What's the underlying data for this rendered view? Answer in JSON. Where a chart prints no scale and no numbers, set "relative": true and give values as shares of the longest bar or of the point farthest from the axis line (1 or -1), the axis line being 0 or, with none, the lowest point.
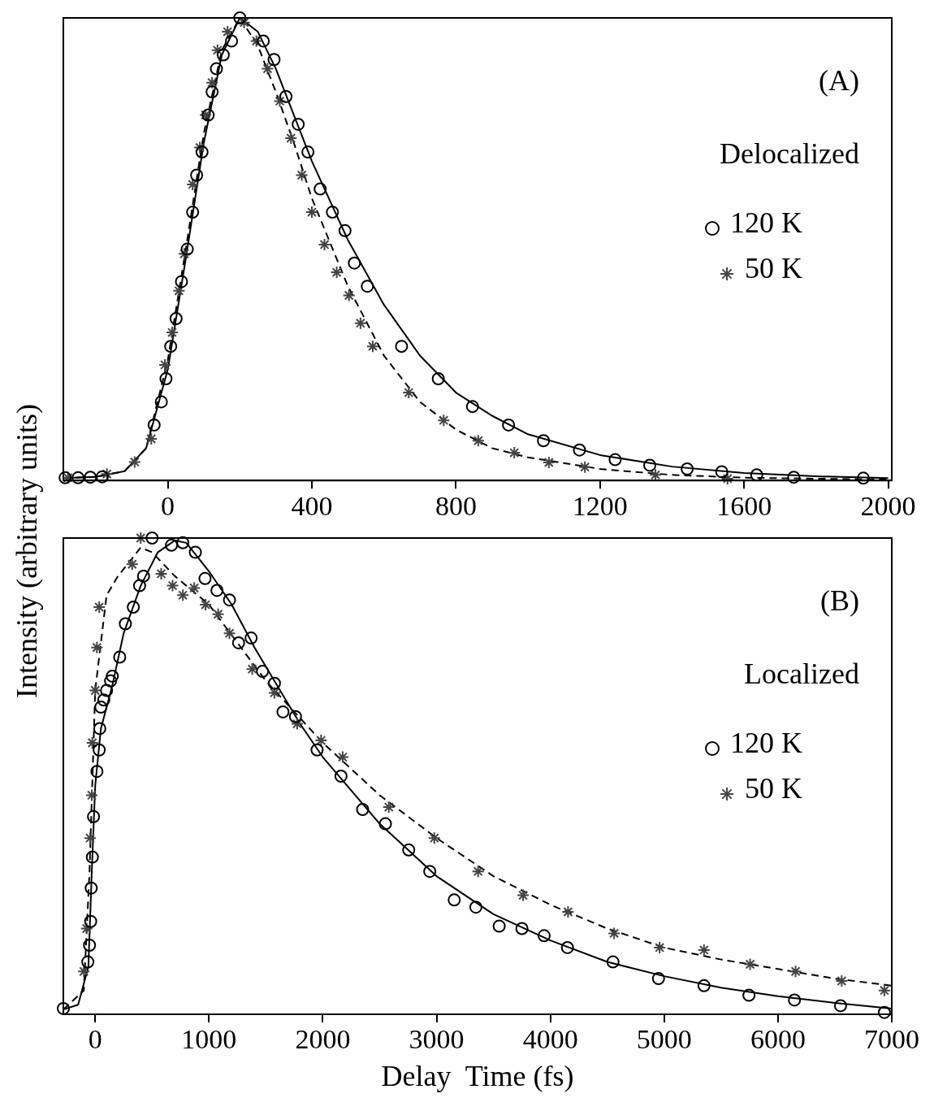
{
  "chart_data": [
    {
      "type": "scatter",
      "relative": true,
      "ylabel": "Intensity (arbitrary units)",
      "annotations": [
        "(A)"
      ],
      "legend": "right",
      "legend_title": "Delocalized",
      "grid": false,
      "xlim": [
        -290,
        2010
      ],
      "xticks": [
        0,
        400,
        800,
        1200,
        1600,
        2000
      ],
      "series": [
        {
          "name": "120 K",
          "type": "scatter",
          "marker": "circle",
          "color": "#000000",
          "x": [
            -285,
            -249,
            -215,
            -182,
            -38,
            -18,
            -5,
            8,
            23,
            38,
            54,
            69,
            80,
            95,
            112,
            123,
            135,
            154,
            177,
            200,
            265,
            295,
            328,
            362,
            389,
            423,
            457,
            492,
            518,
            554,
            649,
            751,
            846,
            946,
            1043,
            1143,
            1242,
            1338,
            1442,
            1538,
            1635,
            1738,
            1931
          ],
          "values": [
            0.006,
            0.006,
            0.007,
            0.008,
            0.12,
            0.17,
            0.22,
            0.29,
            0.35,
            0.43,
            0.5,
            0.58,
            0.66,
            0.71,
            0.79,
            0.84,
            0.89,
            0.92,
            0.95,
            1,
            0.95,
            0.91,
            0.83,
            0.77,
            0.71,
            0.63,
            0.58,
            0.54,
            0.47,
            0.42,
            0.29,
            0.22,
            0.16,
            0.12,
            0.086,
            0.066,
            0.045,
            0.033,
            0.025,
            0.019,
            0.012,
            0.007,
            0.005
          ]
        },
        {
          "name": "50 K",
          "type": "scatter",
          "marker": "cross",
          "color": "#444444",
          "x": [
            -277,
            -169,
            -92,
            -46,
            -8,
            12,
            31,
            46,
            69,
            89,
            105,
            123,
            138,
            166,
            212,
            246,
            277,
            311,
            342,
            372,
            400,
            435,
            469,
            503,
            535,
            569,
            669,
            766,
            862,
            962,
            1058,
            1158,
            1354,
            1554
          ],
          "values": [
            0.006,
            0.014,
            0.04,
            0.09,
            0.25,
            0.32,
            0.41,
            0.49,
            0.64,
            0.72,
            0.79,
            0.86,
            0.93,
            0.97,
            0.99,
            0.95,
            0.89,
            0.82,
            0.74,
            0.66,
            0.58,
            0.51,
            0.45,
            0.4,
            0.34,
            0.29,
            0.19,
            0.13,
            0.086,
            0.06,
            0.039,
            0.029,
            0.012,
            0.004
          ]
        },
        {
          "type": "line",
          "line_style": "solid",
          "color": "#000000",
          "x": [
            -290,
            -200,
            -120,
            -60,
            0,
            50,
            100,
            150,
            200,
            250,
            300,
            350,
            400,
            500,
            600,
            700,
            800,
            900,
            1000,
            1200,
            1400,
            1600,
            1800,
            2000
          ],
          "values": [
            0.005,
            0.008,
            0.02,
            0.07,
            0.24,
            0.48,
            0.73,
            0.92,
            1,
            0.97,
            0.89,
            0.79,
            0.69,
            0.52,
            0.38,
            0.27,
            0.19,
            0.14,
            0.1,
            0.055,
            0.03,
            0.016,
            0.009,
            0.005
          ]
        },
        {
          "type": "line",
          "line_style": "dashed",
          "color": "#000000",
          "x": [
            -290,
            -200,
            -120,
            -60,
            0,
            50,
            100,
            150,
            200,
            250,
            300,
            350,
            400,
            500,
            600,
            700,
            800,
            900,
            1000,
            1200,
            1400,
            1600,
            2000
          ],
          "values": [
            0.005,
            0.008,
            0.02,
            0.07,
            0.26,
            0.5,
            0.75,
            0.93,
            1,
            0.94,
            0.84,
            0.73,
            0.61,
            0.42,
            0.27,
            0.17,
            0.11,
            0.07,
            0.05,
            0.025,
            0.012,
            0.006,
            0.002
          ]
        }
      ]
    },
    {
      "type": "scatter",
      "relative": true,
      "xlabel": "Delay  Time (fs)",
      "annotations": [
        "(B)"
      ],
      "legend": "right",
      "legend_title": "Localized",
      "grid": false,
      "xlim": [
        -280,
        7000
      ],
      "xticks": [
        0,
        1000,
        2000,
        3000,
        4000,
        5000,
        6000,
        7000
      ],
      "series": [
        {
          "name": "120 K",
          "type": "scatter",
          "marker": "circle",
          "color": "#000000",
          "x": [
            -280,
            -65,
            -50,
            -40,
            -35,
            -25,
            -15,
            15,
            35,
            40,
            50,
            75,
            100,
            135,
            150,
            215,
            265,
            335,
            390,
            425,
            500,
            670,
            770,
            880,
            965,
            1070,
            1180,
            1260,
            1370,
            1470,
            1575,
            1650,
            1760,
            1950,
            2160,
            2350,
            2550,
            2755,
            2940,
            3155,
            3345,
            3550,
            3750,
            3945,
            4150,
            4550,
            4950,
            5350,
            5745,
            6145,
            6550,
            6935
          ],
          "values": [
            0.012,
            0.11,
            0.145,
            0.195,
            0.265,
            0.33,
            0.415,
            0.51,
            0.555,
            0.6,
            0.645,
            0.66,
            0.68,
            0.7,
            0.71,
            0.75,
            0.82,
            0.855,
            0.9,
            0.92,
            1,
            0.985,
            0.99,
            0.97,
            0.915,
            0.89,
            0.87,
            0.78,
            0.79,
            0.72,
            0.695,
            0.635,
            0.625,
            0.555,
            0.5,
            0.43,
            0.4,
            0.345,
            0.3,
            0.24,
            0.225,
            0.185,
            0.18,
            0.165,
            0.14,
            0.11,
            0.075,
            0.06,
            0.04,
            0.03,
            0.018,
            0.004
          ]
        },
        {
          "name": "50 K",
          "type": "scatter",
          "marker": "cross",
          "color": "#444444",
          "x": [
            -100,
            -75,
            -45,
            -30,
            -25,
            0,
            15,
            35,
            325,
            400,
            580,
            680,
            770,
            870,
            970,
            1080,
            1180,
            1380,
            1575,
            1775,
            1985,
            2175,
            2580,
            2980,
            3365,
            3760,
            4155,
            4560,
            4960,
            5350,
            5755,
            6155,
            6560,
            6935
          ],
          "values": [
            0.09,
            0.18,
            0.37,
            0.46,
            0.57,
            0.68,
            0.77,
            0.855,
            0.945,
            1,
            0.925,
            0.9,
            0.88,
            0.895,
            0.86,
            0.84,
            0.8,
            0.725,
            0.675,
            0.61,
            0.575,
            0.54,
            0.435,
            0.37,
            0.3,
            0.25,
            0.215,
            0.17,
            0.14,
            0.135,
            0.105,
            0.09,
            0.07,
            0.05
          ]
        },
        {
          "type": "line",
          "line_style": "solid",
          "color": "#000000",
          "x": [
            -280,
            -150,
            -60,
            -30,
            0,
            50,
            150,
            250,
            400,
            550,
            700,
            800,
            1000,
            1200,
            1400,
            1600,
            1800,
            2000,
            2500,
            3000,
            3500,
            4000,
            4500,
            5000,
            5500,
            6000,
            6500,
            7000
          ],
          "values": [
            0.01,
            0.02,
            0.1,
            0.3,
            0.48,
            0.6,
            0.69,
            0.8,
            0.9,
            0.97,
            0.995,
            0.99,
            0.93,
            0.86,
            0.77,
            0.69,
            0.61,
            0.54,
            0.4,
            0.29,
            0.21,
            0.155,
            0.11,
            0.08,
            0.056,
            0.038,
            0.024,
            0.012
          ]
        },
        {
          "type": "line",
          "line_style": "dashed",
          "color": "#000000",
          "x": [
            -280,
            -100,
            -50,
            0,
            100,
            200,
            400,
            500,
            700,
            1000,
            1500,
            2000,
            2500,
            3000,
            3500,
            4000,
            4500,
            5000,
            5500,
            6000,
            6500,
            7000
          ],
          "values": [
            0.01,
            0.05,
            0.3,
            0.68,
            0.88,
            0.92,
            0.98,
            0.97,
            0.92,
            0.86,
            0.7,
            0.57,
            0.46,
            0.37,
            0.29,
            0.23,
            0.18,
            0.14,
            0.115,
            0.095,
            0.075,
            0.06
          ]
        }
      ]
    }
  ]
}
